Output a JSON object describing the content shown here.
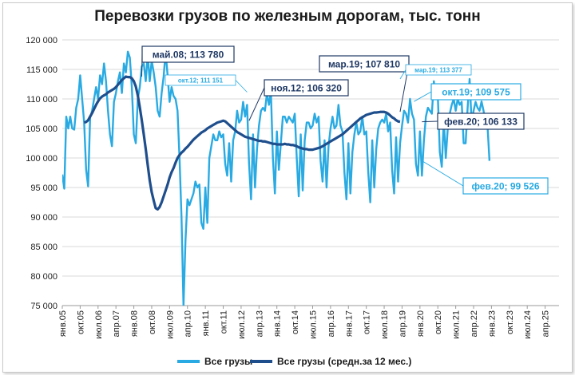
{
  "chart_data": {
    "type": "line",
    "title": "Перевозки грузов по железным дорогам, тыс. тонн",
    "ylim": [
      75000,
      120000
    ],
    "yticks": [
      "75 000",
      "80 000",
      "85 000",
      "90 000",
      "95 000",
      "100 000",
      "105 000",
      "110 000",
      "115 000",
      "120 000"
    ],
    "x_start": "2005-01",
    "x_end": "2025-10",
    "xtick_labels": [
      "янв.05",
      "окт.05",
      "июл.06",
      "апр.07",
      "янв.08",
      "окт.08",
      "июл.09",
      "апр.10",
      "янв.11",
      "окт.11",
      "июл.12",
      "апр.13",
      "янв.14",
      "окт.14",
      "июл.15",
      "апр.16",
      "янв.17",
      "окт.17",
      "июл.18",
      "апр.19",
      "янв.20",
      "окт.20",
      "июл.21",
      "апр.22",
      "янв.23",
      "окт.23",
      "июл.24",
      "апр.25"
    ],
    "series": [
      {
        "name": "Все грузы",
        "color": "#29aae2",
        "values": [
          97200,
          94800,
          107000,
          105000,
          107000,
          105000,
          104800,
          108500,
          110000,
          114000,
          110000,
          106000,
          98000,
          95200,
          106800,
          108000,
          110000,
          112000,
          110000,
          114000,
          112500,
          116000,
          113000,
          108000,
          104000,
          102000,
          109500,
          111000,
          113000,
          114500,
          111000,
          116000,
          114500,
          118000,
          117000,
          112000,
          104000,
          102500,
          110000,
          112000,
          115500,
          116000,
          113000,
          117500,
          113000,
          116500,
          114500,
          112000,
          108000,
          107000,
          111000,
          113780,
          118000,
          114000,
          109500,
          112000,
          110500,
          110000,
          108000,
          100000,
          90000,
          75000,
          86000,
          93000,
          92000,
          93000,
          94000,
          96000,
          95000,
          95500,
          89000,
          88000,
          95000,
          89000,
          100000,
          102000,
          104000,
          103000,
          103000,
          104500,
          103500,
          104000,
          99000,
          97000,
          102500,
          96000,
          103000,
          104500,
          108000,
          106000,
          106500,
          109500,
          107000,
          109000,
          99000,
          93000,
          104000,
          95000,
          101500,
          105500,
          108000,
          108500,
          108000,
          111000,
          109000,
          111151,
          100000,
          94000,
          104500,
          98000,
          102500,
          107000,
          107000,
          106000,
          107000,
          106500,
          106000,
          107500,
          100000,
          93500,
          104000,
          94500,
          103000,
          106000,
          106000,
          105000,
          105500,
          107500,
          106000,
          107000,
          99500,
          96000,
          103000,
          95000,
          102000,
          105000,
          107000,
          105000,
          105500,
          109000,
          105500,
          104500,
          97500,
          93000,
          102500,
          94000,
          101000,
          104000,
          106000,
          104000,
          104500,
          107000,
          104000,
          104500,
          97500,
          92500,
          103000,
          95000,
          101500,
          105000,
          106000,
          106500,
          106000,
          107500,
          104500,
          106000,
          98000,
          94000,
          103500,
          96000,
          102500,
          105500,
          108000,
          107500,
          106000,
          110000,
          107500,
          106500,
          99000,
          97000,
          104500,
          97000,
          103000,
          107000,
          108500,
          108000,
          107500,
          113000,
          110000,
          110500,
          101000,
          98500,
          106500,
          100000,
          105000,
          107500,
          109000,
          110000,
          108000,
          110000,
          109000,
          109500,
          102500,
          102500,
          108500,
          113377,
          106000,
          108000,
          109500,
          108500,
          108000,
          109575,
          108000,
          106000,
          105500,
          99526
        ]
      },
      {
        "name": "Все грузы (средн.за 12 мес.)",
        "color": "#1f4e8c",
        "start_index": 11,
        "values": [
          106000,
          106100,
          106400,
          107000,
          107600,
          108300,
          109000,
          109600,
          110100,
          110400,
          110600,
          110800,
          111100,
          111300,
          111500,
          111700,
          112000,
          112400,
          112800,
          113200,
          113500,
          113780,
          113700,
          113700,
          113500,
          113000,
          112100,
          110600,
          108600,
          106400,
          104000,
          101500,
          98800,
          96200,
          94200,
          92800,
          91500,
          91300,
          91700,
          92500,
          93500,
          94500,
          95500,
          96700,
          97600,
          98300,
          99200,
          100000,
          100500,
          100900,
          101200,
          101600,
          101900,
          102300,
          102700,
          103100,
          103400,
          103700,
          104000,
          104300,
          104500,
          104700,
          105000,
          105200,
          105400,
          105600,
          105800,
          106000,
          106100,
          106200,
          106320,
          106200,
          105900,
          105600,
          105300,
          105000,
          104700,
          104400,
          104200,
          104000,
          103800,
          103600,
          103500,
          103400,
          103300,
          103200,
          103100,
          103000,
          102900,
          102900,
          102800,
          102800,
          102700,
          102600,
          102500,
          102400,
          102400,
          102300,
          102300,
          102300,
          102300,
          102400,
          102300,
          102300,
          102200,
          102200,
          102100,
          102000,
          101800,
          101700,
          101600,
          101500,
          101500,
          101400,
          101400,
          101400,
          101500,
          101600,
          101700,
          101800,
          102000,
          102200,
          102400,
          102600,
          102800,
          103000,
          103200,
          103400,
          103600,
          103800,
          104000,
          104300,
          104600,
          104900,
          105200,
          105500,
          105800,
          106100,
          106400,
          106700,
          106900,
          107100,
          107300,
          107400,
          107500,
          107600,
          107700,
          107700,
          107750,
          107800,
          107810,
          107800,
          107700,
          107500,
          107200,
          106900,
          106700,
          106400,
          106200,
          106133
        ]
      }
    ],
    "annotations": [
      {
        "text": "май.08;  113 780",
        "style": "dark-box"
      },
      {
        "text": "окт.12; 111 151",
        "style": "light-small"
      },
      {
        "text": "ноя.12;  106 320",
        "style": "dark-box"
      },
      {
        "text": "мар.19;  107 810",
        "style": "dark-box"
      },
      {
        "text": "мар.19; 113 377",
        "style": "light-small"
      },
      {
        "text": "окт.19; 109 575",
        "style": "light-box"
      },
      {
        "text": "фев.20;  106 133",
        "style": "dark-box"
      },
      {
        "text": "фев.20; 99 526",
        "style": "light-box"
      }
    ],
    "legend": {
      "position": "bottom",
      "items": [
        "Все грузы",
        "Все грузы (средн.за 12 мес.)"
      ]
    }
  }
}
